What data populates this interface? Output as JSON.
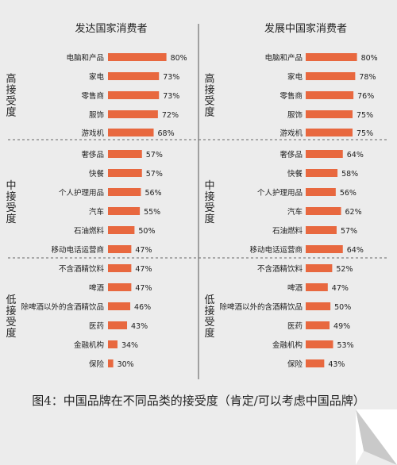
{
  "caption": "图4：中国品牌在不同品类的接受度（肯定/可以考虑中国品牌）",
  "colors": {
    "bar": "#e8683f",
    "background": "#ececec",
    "text": "#222222",
    "divider": "#555555"
  },
  "chart_data": [
    {
      "type": "bar",
      "orientation": "horizontal",
      "title": "发达国家消费者",
      "groups": [
        {
          "label": "高接受度",
          "categories": [
            "电脑和产品",
            "家电",
            "零售商",
            "服饰",
            "游戏机"
          ],
          "values": [
            80,
            73,
            73,
            72,
            68
          ]
        },
        {
          "label": "中接受度",
          "categories": [
            "奢侈品",
            "快餐",
            "个人护理用品",
            "汽车",
            "石油燃料",
            "移动电话运营商"
          ],
          "values": [
            57,
            57,
            56,
            55,
            50,
            47
          ]
        },
        {
          "label": "低接受度",
          "categories": [
            "不含酒精饮料",
            "啤酒",
            "除啤酒以外的含酒精饮品",
            "医药",
            "金融机构",
            "保险"
          ],
          "values": [
            47,
            47,
            46,
            43,
            34,
            30
          ]
        }
      ],
      "value_suffix": "%"
    },
    {
      "type": "bar",
      "orientation": "horizontal",
      "title": "发展中国家消费者",
      "groups": [
        {
          "label": "高接受度",
          "categories": [
            "电脑和产品",
            "家电",
            "零售商",
            "服饰",
            "游戏机"
          ],
          "values": [
            80,
            78,
            76,
            75,
            75
          ]
        },
        {
          "label": "中接受度",
          "categories": [
            "奢侈品",
            "快餐",
            "个人护理用品",
            "汽车",
            "石油燃料",
            "移动电话运营商"
          ],
          "values": [
            64,
            58,
            56,
            62,
            57,
            64
          ]
        },
        {
          "label": "低接受度",
          "categories": [
            "不含酒精饮料",
            "啤酒",
            "除啤酒以外的含酒精饮品",
            "医药",
            "金融机构",
            "保险"
          ],
          "values": [
            52,
            47,
            50,
            49,
            53,
            43
          ]
        }
      ],
      "value_suffix": "%"
    }
  ]
}
